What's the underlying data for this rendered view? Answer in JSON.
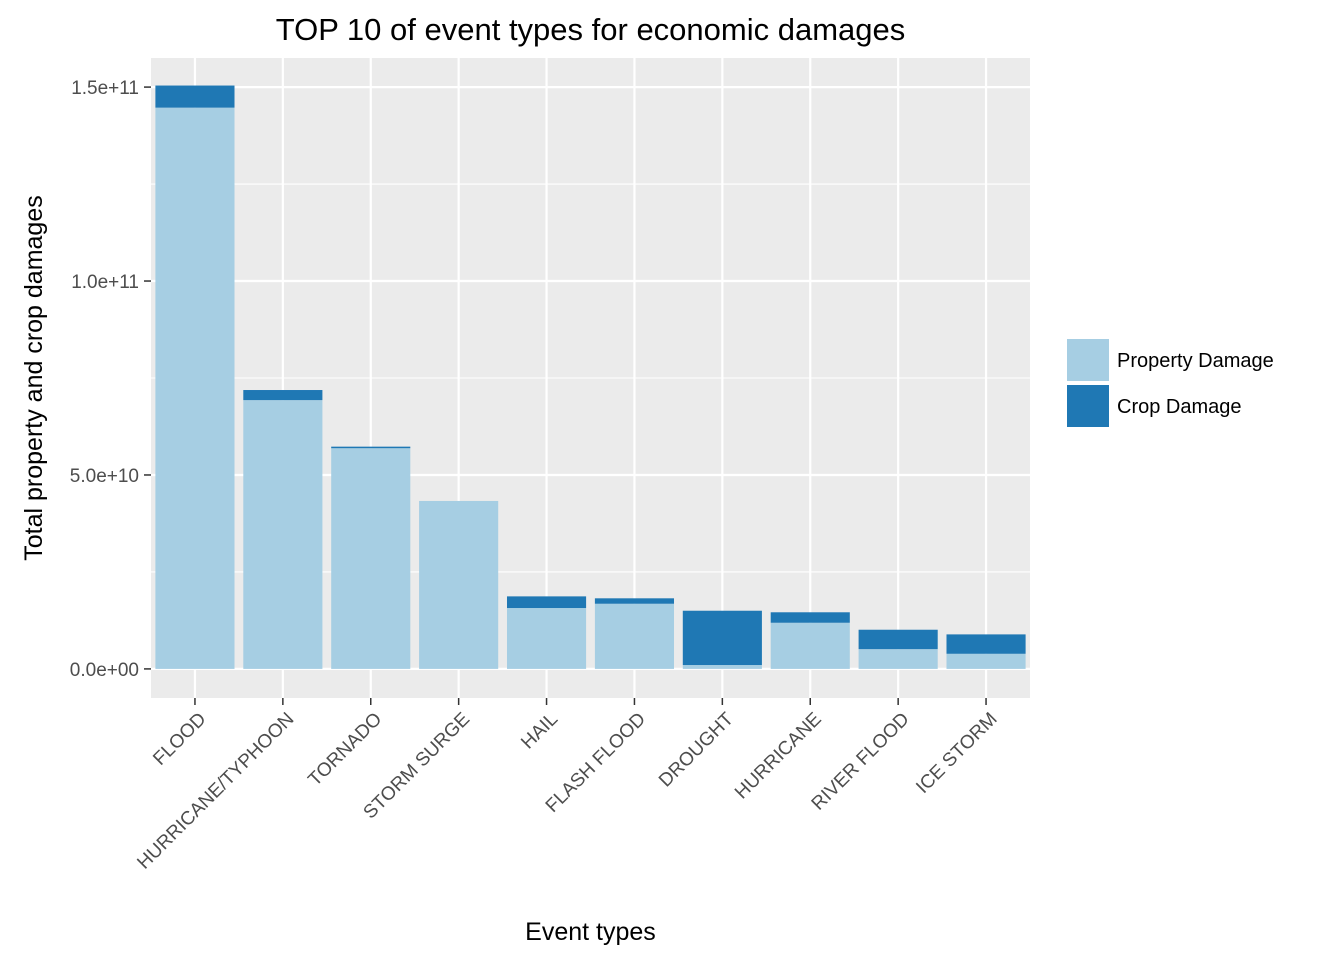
{
  "colors": {
    "panel_background": "#ebebeb",
    "gridline": "#ffffff",
    "property_damage": "#a6cee3",
    "crop_damage": "#1f78b4",
    "tick": "#333333",
    "tick_label": "#4d4d4d"
  },
  "chart_data": {
    "type": "bar",
    "stacked": true,
    "title": "TOP 10 of  event types for economic damages",
    "xlabel": "Event types",
    "ylabel": "Total property and crop damages",
    "categories": [
      "FLOOD",
      "HURRICANE/TYPHOON",
      "TORNADO",
      "STORM SURGE",
      "HAIL",
      "FLASH FLOOD",
      "DROUGHT",
      "HURRICANE",
      "RIVER FLOOD",
      "ICE STORM"
    ],
    "series": [
      {
        "name": "Property Damage",
        "color": "#a6cee3",
        "values": [
          144700000000,
          69300000000,
          56900000000,
          43300000000,
          15700000000,
          16800000000,
          1000000000,
          11900000000,
          5100000000,
          3900000000
        ]
      },
      {
        "name": "Crop Damage",
        "color": "#1f78b4",
        "values": [
          5700000000,
          2600000000,
          400000000,
          0,
          3000000000,
          1400000000,
          14000000000,
          2700000000,
          5000000000,
          5000000000
        ]
      }
    ],
    "ylim": [
      -7500000000,
      157500000000
    ],
    "y_ticks": [
      0,
      50000000000,
      100000000000,
      150000000000
    ],
    "y_tick_labels": [
      "0.0e+00",
      "5.0e+10",
      "1.0e+11",
      "1.5e+11"
    ],
    "grid": true,
    "legend": {
      "position": "right",
      "entries": [
        "Property Damage",
        "Crop Damage"
      ]
    }
  }
}
